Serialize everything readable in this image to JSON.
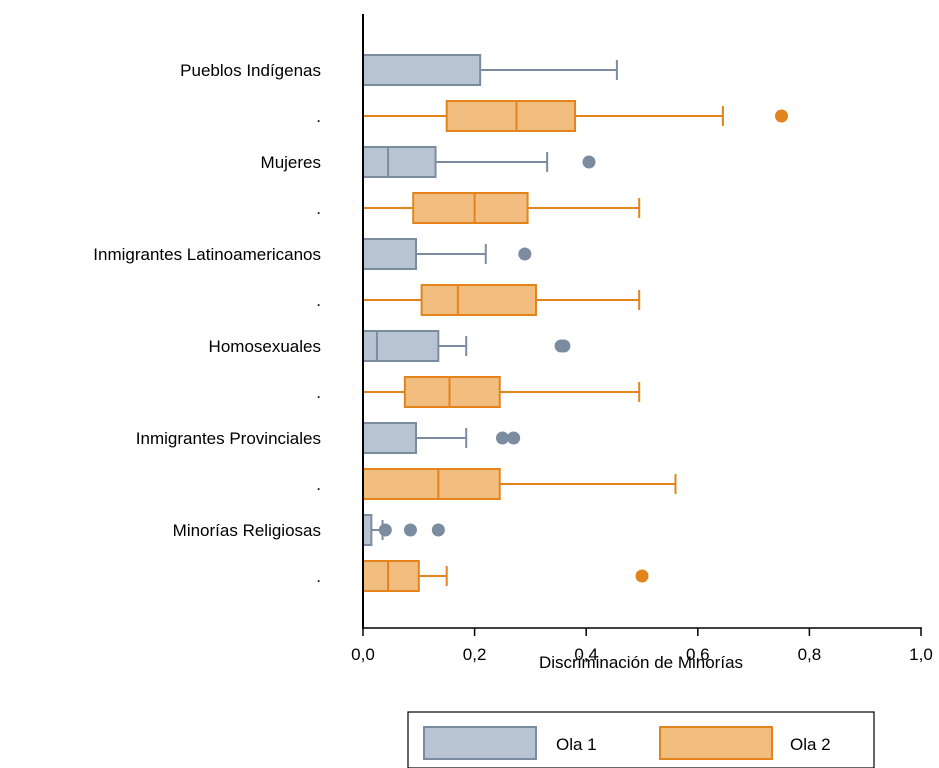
{
  "chart_data": {
    "type": "boxplot",
    "orientation": "horizontal",
    "xlabel": "Discriminación de Minorías",
    "xlim": [
      0,
      1
    ],
    "x_ticks": [
      0,
      0.2,
      0.4,
      0.6,
      0.8,
      1.0
    ],
    "x_tick_labels": [
      "0,0",
      "0,2",
      "0,4",
      "0,6",
      "0,8",
      "1,0"
    ],
    "grid": false,
    "legend_position": "bottom-center",
    "series": [
      {
        "name": "Ola 1",
        "fill": "#b8c4d2",
        "stroke": "#7b8ca0"
      },
      {
        "name": "Ola 2",
        "fill": "#f2be80",
        "stroke": "#e3831b"
      }
    ],
    "categories": [
      {
        "label": "Pueblos Indígenas",
        "secondary_label": ".",
        "boxes": [
          {
            "q1": 0.0,
            "median": 0.0,
            "q3": 0.21,
            "whisker_low": 0.0,
            "whisker_high": 0.455,
            "outliers": []
          },
          {
            "q1": 0.15,
            "median": 0.275,
            "q3": 0.38,
            "whisker_low": 0.0,
            "whisker_high": 0.645,
            "outliers": [
              0.75
            ]
          }
        ]
      },
      {
        "label": "Mujeres",
        "secondary_label": ".",
        "boxes": [
          {
            "q1": 0.0,
            "median": 0.045,
            "q3": 0.13,
            "whisker_low": 0.0,
            "whisker_high": 0.33,
            "outliers": [
              0.405
            ]
          },
          {
            "q1": 0.09,
            "median": 0.2,
            "q3": 0.295,
            "whisker_low": 0.0,
            "whisker_high": 0.495,
            "outliers": []
          }
        ]
      },
      {
        "label": "Inmigrantes Latinoamericanos",
        "secondary_label": ".",
        "boxes": [
          {
            "q1": 0.0,
            "median": 0.0,
            "q3": 0.095,
            "whisker_low": 0.0,
            "whisker_high": 0.22,
            "outliers": [
              0.29
            ]
          },
          {
            "q1": 0.105,
            "median": 0.17,
            "q3": 0.31,
            "whisker_low": 0.0,
            "whisker_high": 0.495,
            "outliers": []
          }
        ]
      },
      {
        "label": "Homosexuales",
        "secondary_label": ".",
        "boxes": [
          {
            "q1": 0.0,
            "median": 0.025,
            "q3": 0.135,
            "whisker_low": 0.0,
            "whisker_high": 0.185,
            "outliers": [
              0.355,
              0.36
            ]
          },
          {
            "q1": 0.075,
            "median": 0.155,
            "q3": 0.245,
            "whisker_low": 0.0,
            "whisker_high": 0.495,
            "outliers": []
          }
        ]
      },
      {
        "label": "Inmigrantes Provinciales",
        "secondary_label": ".",
        "boxes": [
          {
            "q1": 0.0,
            "median": 0.0,
            "q3": 0.095,
            "whisker_low": 0.0,
            "whisker_high": 0.185,
            "outliers": [
              0.25,
              0.27
            ]
          },
          {
            "q1": 0.0,
            "median": 0.135,
            "q3": 0.245,
            "whisker_low": 0.0,
            "whisker_high": 0.56,
            "outliers": []
          }
        ]
      },
      {
        "label": "Minorías Religiosas",
        "secondary_label": ".",
        "boxes": [
          {
            "q1": 0.0,
            "median": 0.0,
            "q3": 0.015,
            "whisker_low": 0.0,
            "whisker_high": 0.035,
            "outliers": [
              0.04,
              0.085,
              0.135
            ]
          },
          {
            "q1": 0.0,
            "median": 0.045,
            "q3": 0.1,
            "whisker_low": 0.0,
            "whisker_high": 0.15,
            "outliers": [
              0.5
            ]
          }
        ]
      }
    ]
  }
}
